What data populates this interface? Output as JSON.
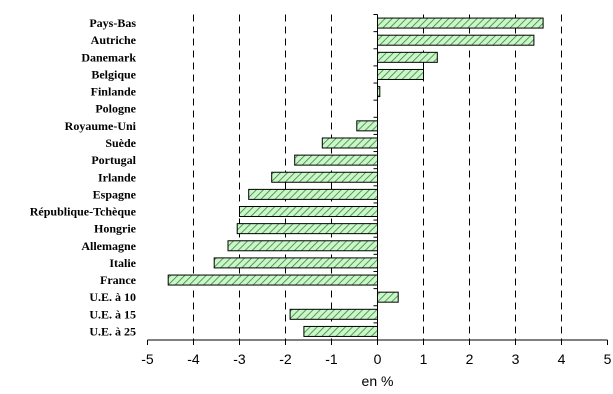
{
  "chart_data": {
    "type": "bar",
    "orientation": "horizontal",
    "title": "",
    "xlabel": "en %",
    "ylabel": "",
    "xlim": [
      -5,
      5
    ],
    "x_ticks": [
      -5,
      -4,
      -3,
      -2,
      -1,
      0,
      1,
      2,
      3,
      4,
      5
    ],
    "grid": "vertical dashed lines at major ticks",
    "legend": "none",
    "bar_fill": "green diagonal hatch",
    "colors": {
      "bar_stroke": "#000000",
      "hatch": "#2e8b2e",
      "bar_background": "#ccf5cc"
    },
    "categories": [
      "Pays-Bas",
      "Autriche",
      "Danemark",
      "Belgique",
      "Finlande",
      "Pologne",
      "Royaume-Uni",
      "Suède",
      "Portugal",
      "Irlande",
      "Espagne",
      "République-Tchèque",
      "Hongrie",
      "Allemagne",
      "Italie",
      "France",
      "U.E. à 10",
      "U.E. à 15",
      "U.E. à 25"
    ],
    "values": [
      3.6,
      3.4,
      1.3,
      1.0,
      0.05,
      0.0,
      -0.45,
      -1.2,
      -1.8,
      -2.3,
      -2.8,
      -3.0,
      -3.05,
      -3.25,
      -3.55,
      -4.55,
      0.45,
      -1.9,
      -1.6
    ]
  }
}
